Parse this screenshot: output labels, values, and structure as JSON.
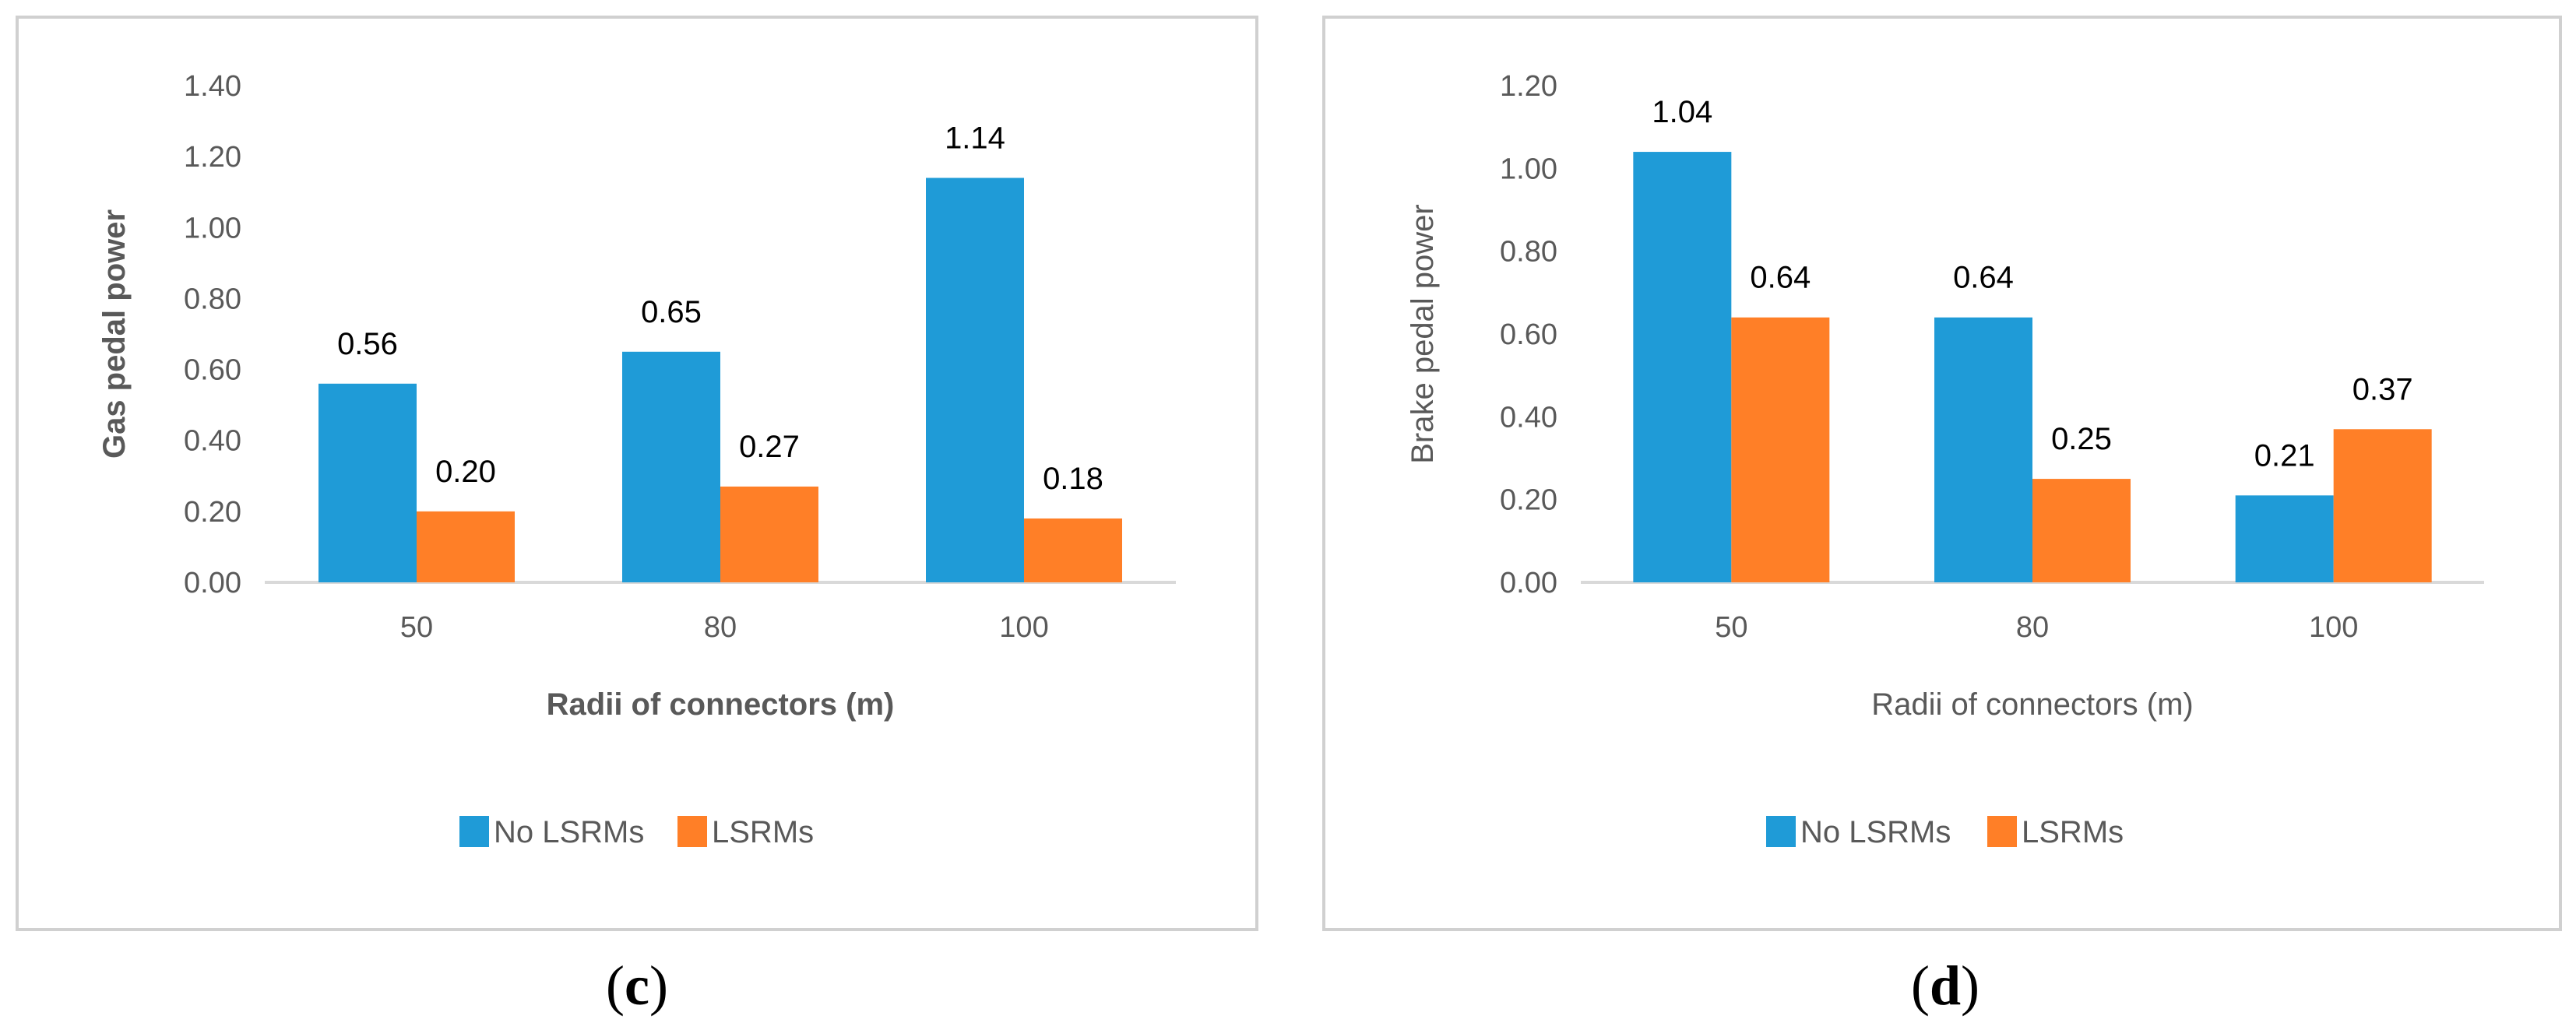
{
  "colors": {
    "no_lsrms": "#1f9bd7",
    "lsrms": "#ff7f27",
    "axis": "#d9d9d9",
    "frame": "#d0d0d0",
    "text": "#595959"
  },
  "chart_data": [
    {
      "type": "bar",
      "panel_label": "c",
      "categories": [
        "50",
        "80",
        "100"
      ],
      "series": [
        {
          "name": "No LSRMs",
          "values": [
            0.56,
            0.65,
            1.14
          ],
          "labels": [
            "0.56",
            "0.65",
            "1.14"
          ]
        },
        {
          "name": "LSRMs",
          "values": [
            0.2,
            0.27,
            0.18
          ],
          "labels": [
            "0.20",
            "0.27",
            "0.18"
          ]
        }
      ],
      "xlabel": "Radii of connectors (m)",
      "ylabel": "Gas pedal power",
      "axis_title_bold": true,
      "ylim": [
        0,
        1.4
      ],
      "yticks": [
        "0.00",
        "0.20",
        "0.40",
        "0.60",
        "0.80",
        "1.00",
        "1.20",
        "1.40"
      ],
      "legend": [
        "No LSRMs",
        "LSRMs"
      ],
      "legend_position": "bottom",
      "grid": false
    },
    {
      "type": "bar",
      "panel_label": "d",
      "categories": [
        "50",
        "80",
        "100"
      ],
      "series": [
        {
          "name": "No LSRMs",
          "values": [
            1.04,
            0.64,
            0.21
          ],
          "labels": [
            "1.04",
            "0.64",
            "0.21"
          ]
        },
        {
          "name": "LSRMs",
          "values": [
            0.64,
            0.25,
            0.37
          ],
          "labels": [
            "0.64",
            "0.25",
            "0.37"
          ]
        }
      ],
      "xlabel": "Radii of connectors (m)",
      "ylabel": "Brake pedal power",
      "axis_title_bold": false,
      "ylim": [
        0,
        1.2
      ],
      "yticks": [
        "0.00",
        "0.20",
        "0.40",
        "0.60",
        "0.80",
        "1.00",
        "1.20"
      ],
      "legend": [
        "No LSRMs",
        "LSRMs"
      ],
      "legend_position": "bottom",
      "grid": false
    }
  ]
}
